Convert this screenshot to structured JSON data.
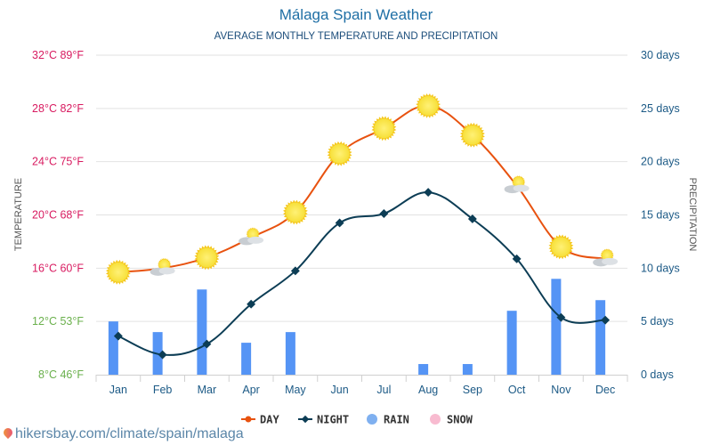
{
  "header": {
    "title": "Málaga Spain Weather",
    "subtitle": "AVERAGE MONTHLY TEMPERATURE AND PRECIPITATION"
  },
  "footer": {
    "link": "hikersbay.com/climate/spain/malaga",
    "icon": "location-pin-icon"
  },
  "colors": {
    "day": "#e8520f",
    "night": "#0c3d55",
    "rain": "#5594f5",
    "snow": "#f8bbd0",
    "warm_label": "#d81b60",
    "cool_label": "#6ab04c",
    "right_axis": "#1c5a86",
    "grid": "#e2e2e2"
  },
  "chart_data": {
    "type": "bar+line",
    "title": "Málaga Spain Weather",
    "subtitle": "AVERAGE MONTHLY TEMPERATURE AND PRECIPITATION",
    "categories": [
      "Jan",
      "Feb",
      "Mar",
      "Apr",
      "May",
      "Jun",
      "Jul",
      "Aug",
      "Sep",
      "Oct",
      "Nov",
      "Dec"
    ],
    "series": [
      {
        "name": "DAY",
        "type": "line",
        "axis": "left",
        "unit": "°C",
        "values": [
          15.7,
          16.0,
          16.8,
          18.3,
          20.2,
          24.6,
          26.5,
          28.2,
          26.0,
          22.2,
          17.6,
          16.7
        ],
        "icons": [
          "sun",
          "sun-cloud",
          "sun",
          "sun-cloud",
          "sun",
          "sun",
          "sun",
          "sun",
          "sun",
          "sun-cloud",
          "sun",
          "sun-cloud"
        ]
      },
      {
        "name": "NIGHT",
        "type": "line",
        "axis": "left",
        "unit": "°C",
        "values": [
          10.9,
          9.5,
          10.3,
          13.3,
          15.8,
          19.4,
          20.1,
          21.7,
          19.7,
          16.7,
          12.3,
          12.1
        ]
      },
      {
        "name": "RAIN",
        "type": "bar",
        "axis": "right",
        "unit": "days",
        "values": [
          5,
          4,
          8,
          3,
          4,
          0,
          0,
          1,
          1,
          6,
          9,
          7
        ]
      },
      {
        "name": "SNOW",
        "type": "bar",
        "axis": "right",
        "unit": "days",
        "values": [
          0,
          0,
          0,
          0,
          0,
          0,
          0,
          0,
          0,
          0,
          0,
          0
        ]
      }
    ],
    "y_left": {
      "label": "TEMPERATURE",
      "range": [
        8,
        32
      ],
      "ticks": [
        {
          "value": 32,
          "label": "32°C 89°F",
          "tone": "warm"
        },
        {
          "value": 28,
          "label": "28°C 82°F",
          "tone": "warm"
        },
        {
          "value": 24,
          "label": "24°C 75°F",
          "tone": "warm"
        },
        {
          "value": 20,
          "label": "20°C 68°F",
          "tone": "warm"
        },
        {
          "value": 16,
          "label": "16°C 60°F",
          "tone": "warm"
        },
        {
          "value": 12,
          "label": "12°C 53°F",
          "tone": "cool"
        },
        {
          "value": 8,
          "label": "8°C 46°F",
          "tone": "cool"
        }
      ]
    },
    "y_right": {
      "label": "PRECIPITATION",
      "range": [
        0,
        30
      ],
      "ticks": [
        {
          "value": 30,
          "label": "30 days"
        },
        {
          "value": 25,
          "label": "25 days"
        },
        {
          "value": 20,
          "label": "20 days"
        },
        {
          "value": 15,
          "label": "15 days"
        },
        {
          "value": 10,
          "label": "10 days"
        },
        {
          "value": 5,
          "label": "5 days"
        },
        {
          "value": 0,
          "label": "0 days"
        }
      ]
    },
    "grid": true,
    "legend": {
      "placement": "bottom",
      "items": [
        {
          "label": "DAY",
          "marker": "line-dot"
        },
        {
          "label": "NIGHT",
          "marker": "line-diamond"
        },
        {
          "label": "RAIN",
          "marker": "circle"
        },
        {
          "label": "SNOW",
          "marker": "circle"
        }
      ]
    }
  }
}
